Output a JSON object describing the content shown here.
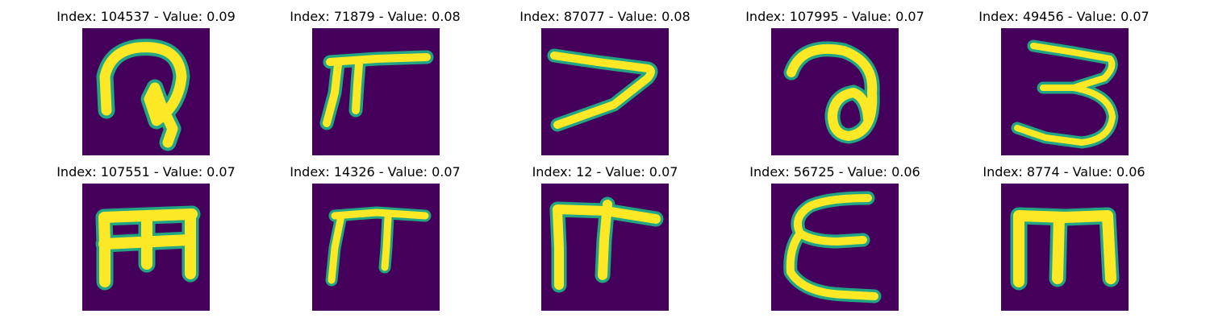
{
  "colors": {
    "background": "#44005a",
    "foreground": "#fde825",
    "edge": "#21a584",
    "mid": "#3a538b"
  },
  "panels": [
    {
      "title": "Index: 104537 - Value: 0.09"
    },
    {
      "title": "Index: 71879 - Value: 0.08"
    },
    {
      "title": "Index: 87077 - Value: 0.08"
    },
    {
      "title": "Index: 107995 - Value: 0.07"
    },
    {
      "title": "Index: 49456 - Value: 0.07"
    },
    {
      "title": "Index: 107551 - Value: 0.07"
    },
    {
      "title": "Index: 14326 - Value: 0.07"
    },
    {
      "title": "Index: 12 - Value: 0.07"
    },
    {
      "title": "Index: 56725 - Value: 0.06"
    },
    {
      "title": "Index: 8774 - Value: 0.06"
    }
  ]
}
